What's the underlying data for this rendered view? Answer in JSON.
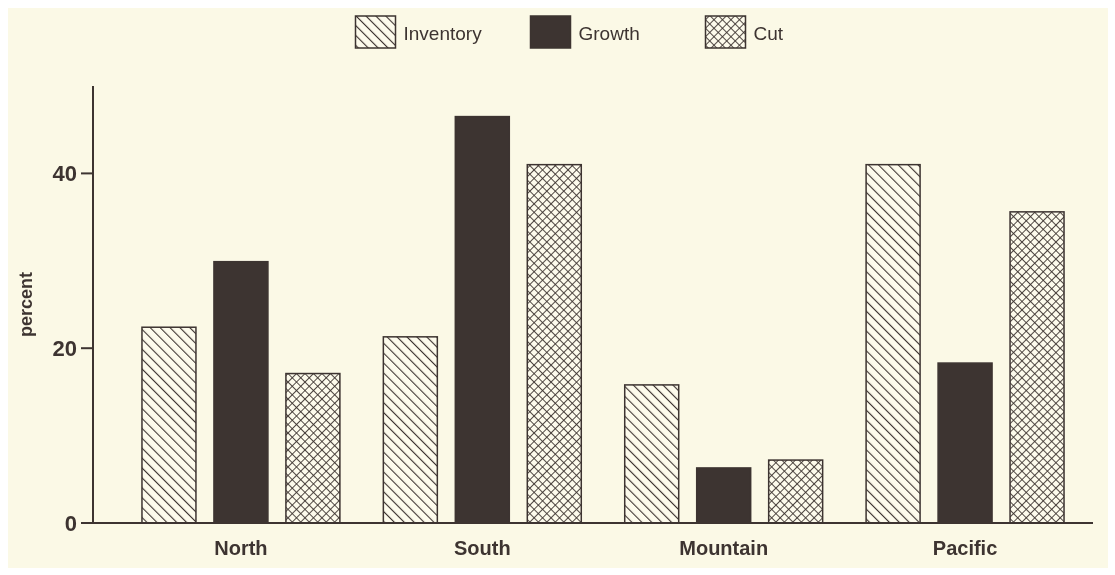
{
  "chart_data": {
    "type": "bar",
    "ylabel": "percent",
    "categories": [
      "North",
      "South",
      "Mountain",
      "Pacific"
    ],
    "series": [
      {
        "name": "Inventory",
        "color": "#3d3431",
        "values": [
          22.4,
          21.3,
          15.8,
          41.0
        ]
      },
      {
        "name": "Growth",
        "color": "#3d3431",
        "values": [
          29.9,
          46.5,
          6.3,
          18.3
        ]
      },
      {
        "name": "Cut",
        "color": "#3d3431",
        "values": [
          17.1,
          41.0,
          7.2,
          35.6
        ]
      }
    ],
    "ylim": [
      0,
      50
    ],
    "yticks": [
      0,
      20,
      40
    ],
    "legend": "top",
    "grid": false
  }
}
